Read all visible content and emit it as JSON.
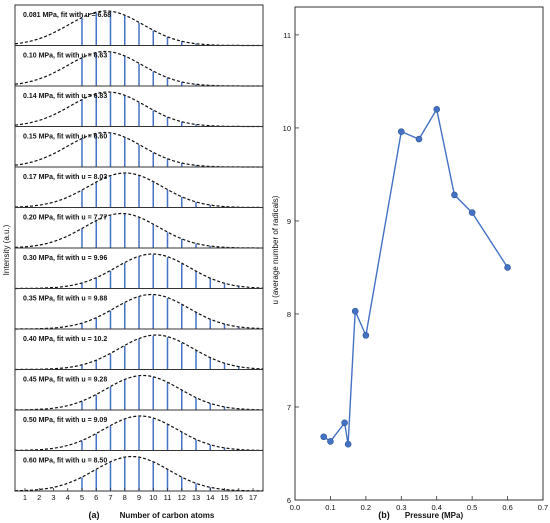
{
  "chart_data": [
    {
      "type": "bar",
      "panel_label": "(a)",
      "xlabel": "Number of carbon atoms",
      "ylabel": "Intensity (a.u.)",
      "x_ticks": [
        1,
        2,
        3,
        4,
        5,
        6,
        7,
        8,
        9,
        10,
        11,
        12,
        13,
        14,
        15,
        16,
        17
      ],
      "xlim": [
        0.3,
        17.7
      ],
      "bar_color": "#4472c4",
      "fit_style": "dashed",
      "carbon_numbers": [
        5,
        6,
        7,
        8,
        9,
        10,
        11,
        12,
        13,
        14,
        15,
        16,
        17
      ],
      "panels": [
        {
          "label": "0.081 MPa, fit with u = 6.68",
          "pressure": 0.081,
          "u": 6.68
        },
        {
          "label": "0.10 MPa, fit with u = 6.63",
          "pressure": 0.1,
          "u": 6.63
        },
        {
          "label": "0.14 MPa, fit with u = 6.83",
          "pressure": 0.14,
          "u": 6.83
        },
        {
          "label": "0.15 MPa, fit with u = 6.60",
          "pressure": 0.15,
          "u": 6.6
        },
        {
          "label": "0.17 MPa, fit with u = 8.03",
          "pressure": 0.17,
          "u": 8.03
        },
        {
          "label": "0.20 MPa, fit with u = 7.77",
          "pressure": 0.2,
          "u": 7.77
        },
        {
          "label": "0.30 MPa, fit with u = 9.96",
          "pressure": 0.3,
          "u": 9.96
        },
        {
          "label": "0.35 MPa, fit with u = 9.88",
          "pressure": 0.35,
          "u": 9.88
        },
        {
          "label": "0.40 MPa, fit with u = 10.2",
          "pressure": 0.4,
          "u": 10.2
        },
        {
          "label": "0.45 MPa, fit with u = 9.28",
          "pressure": 0.45,
          "u": 9.28
        },
        {
          "label": "0.50 MPa, fit with u = 9.09",
          "pressure": 0.5,
          "u": 9.09
        },
        {
          "label": "0.60 MPa, fit with u = 8.50",
          "pressure": 0.6,
          "u": 8.5
        }
      ]
    },
    {
      "type": "line",
      "panel_label": "(b)",
      "xlabel": "Pressure (MPa)",
      "ylabel": "u (average number of radicals)",
      "xlim": [
        0.0,
        0.7
      ],
      "ylim": [
        6,
        11.3
      ],
      "x_ticks": [
        0.0,
        0.1,
        0.2,
        0.3,
        0.4,
        0.5,
        0.6,
        0.7
      ],
      "y_ticks": [
        6,
        7,
        8,
        9,
        10,
        11
      ],
      "x_tick_labels": [
        "0.0",
        "0.1",
        "0.2",
        "0.3",
        "0.4",
        "0.5",
        "0.6",
        "0.7"
      ],
      "y_tick_labels": [
        "6",
        "7",
        "8",
        "9",
        "10",
        "11"
      ],
      "color": "#4472c4",
      "x": [
        0.081,
        0.1,
        0.14,
        0.15,
        0.17,
        0.2,
        0.3,
        0.35,
        0.4,
        0.45,
        0.5,
        0.6
      ],
      "y": [
        6.68,
        6.63,
        6.83,
        6.6,
        8.03,
        7.77,
        9.96,
        9.88,
        10.2,
        9.28,
        9.09,
        8.5
      ]
    }
  ]
}
